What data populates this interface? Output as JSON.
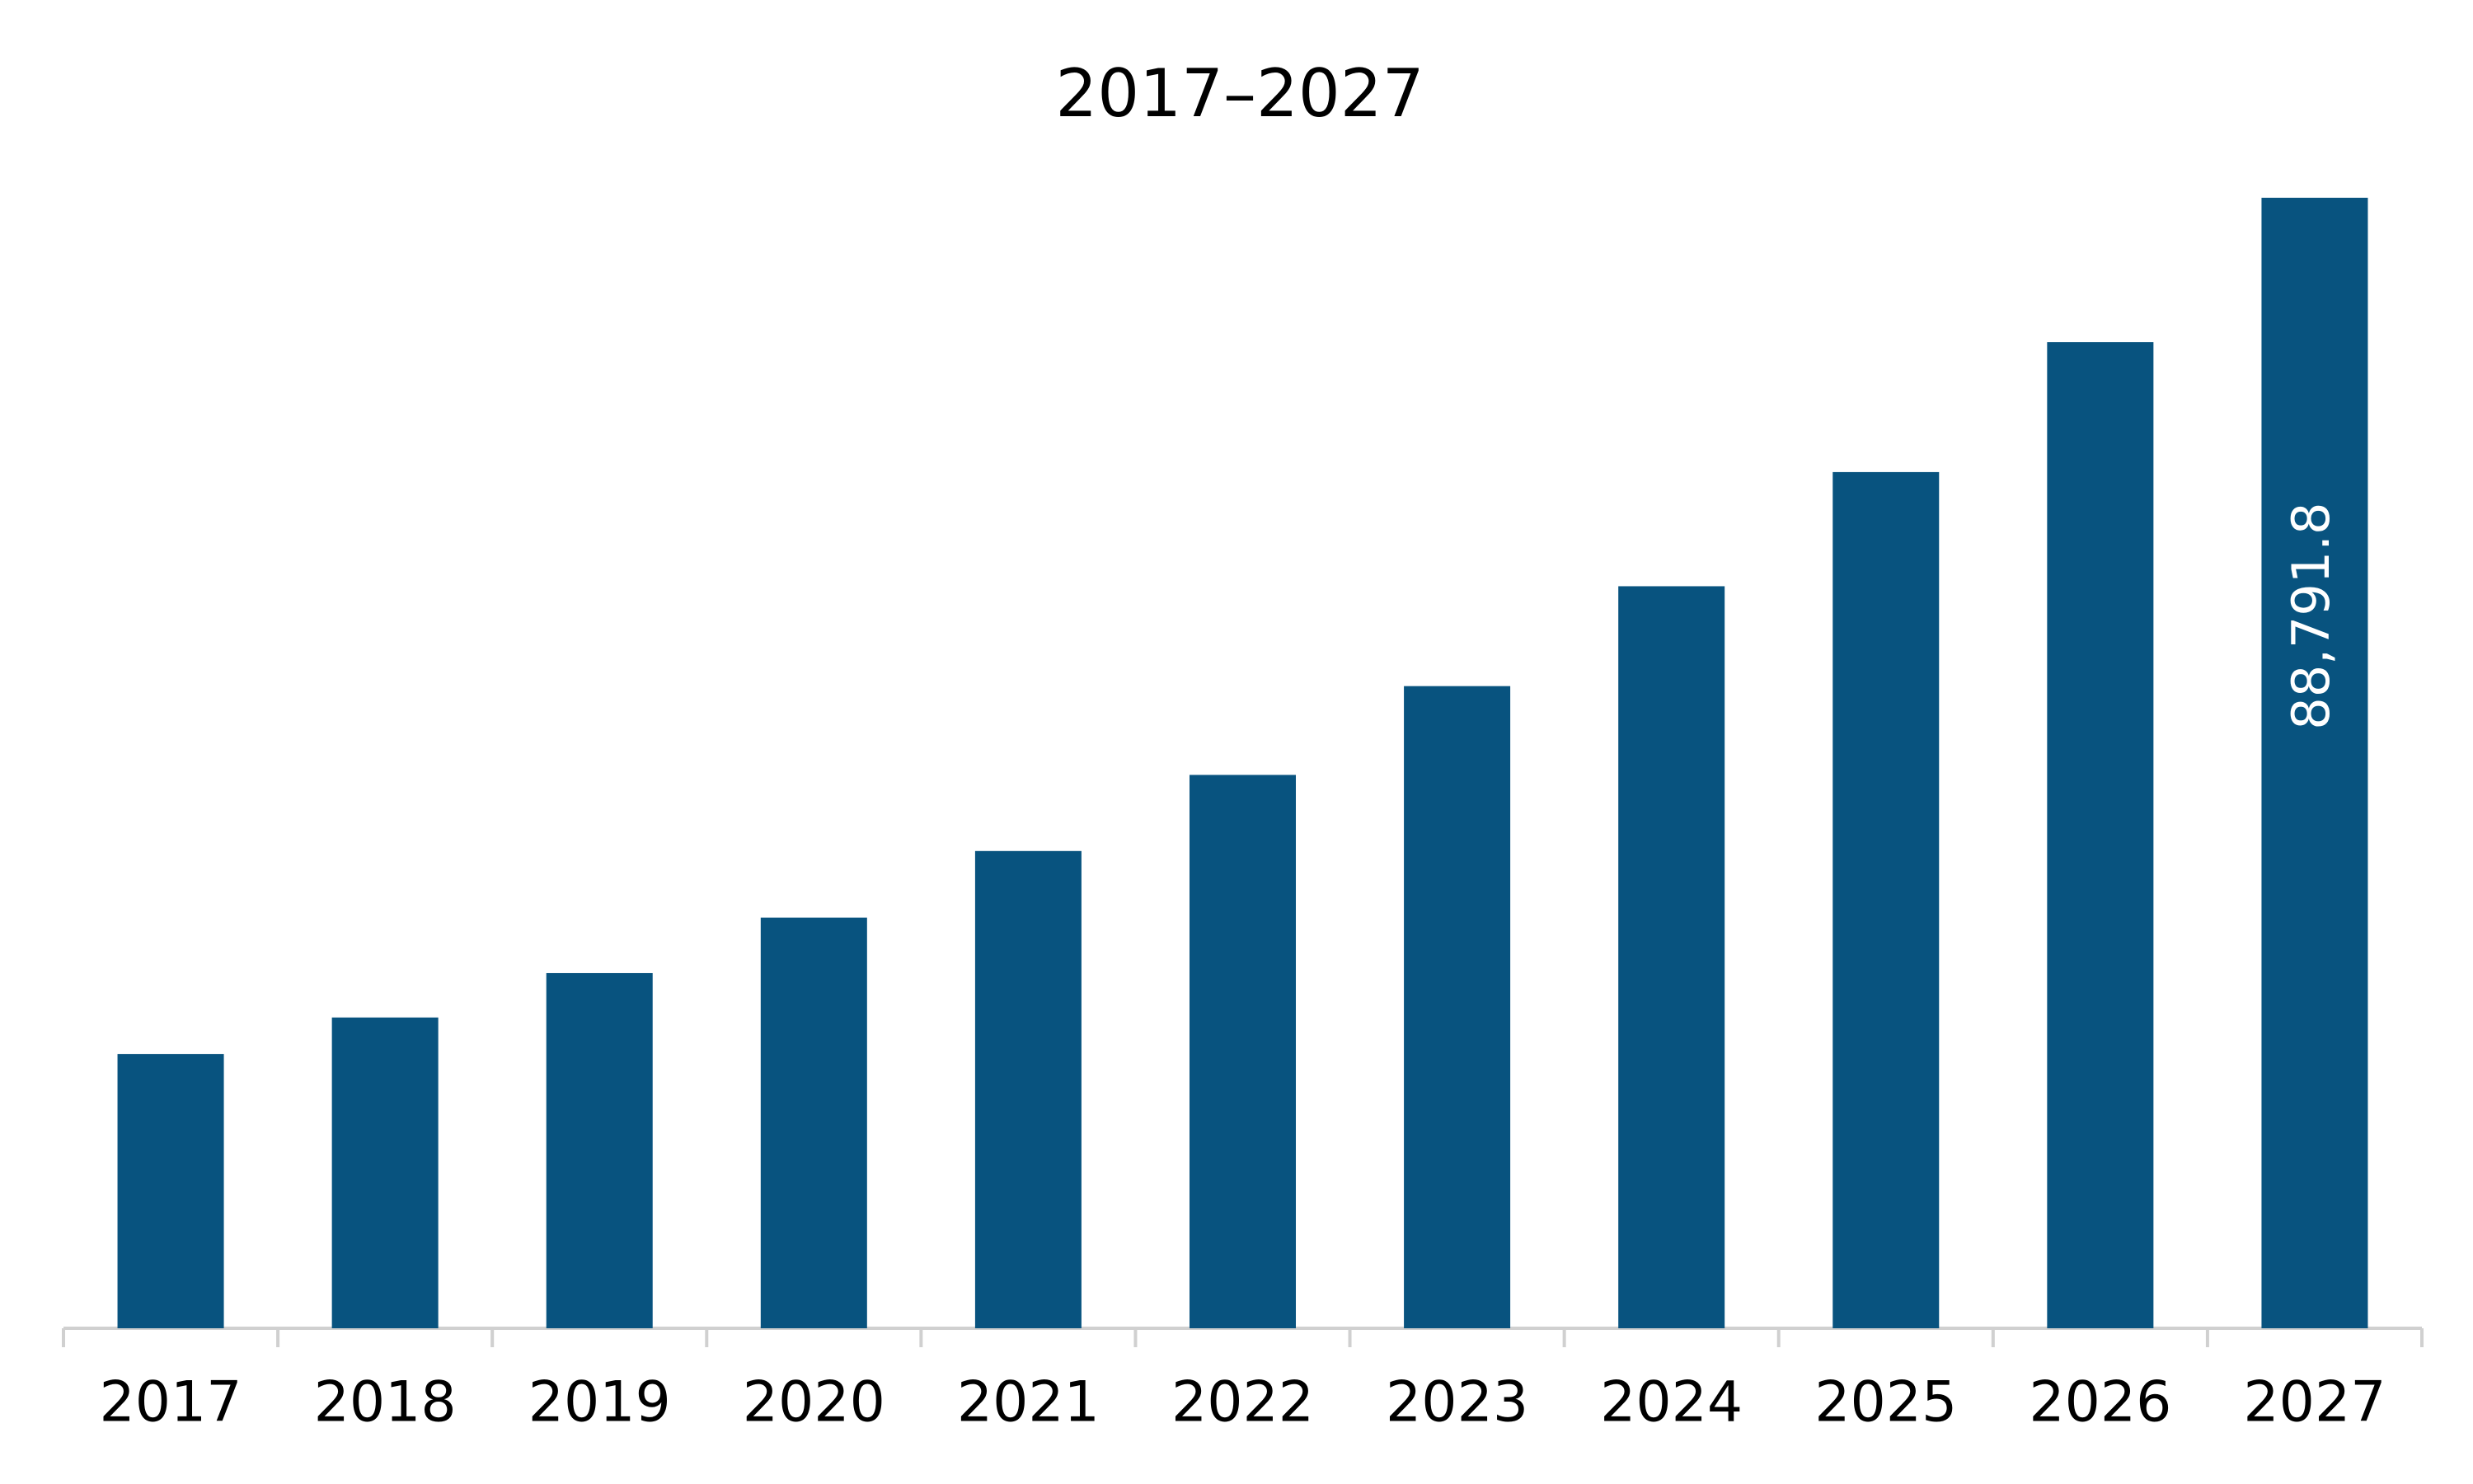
{
  "chart_data": {
    "type": "bar",
    "title": "2017–2027",
    "categories": [
      "2017",
      "2018",
      "2019",
      "2020",
      "2021",
      "2022",
      "2023",
      "2024",
      "2025",
      "2026",
      "2027"
    ],
    "values": [
      21544,
      24408,
      27895,
      32253,
      37484,
      43461,
      50435,
      58280,
      67246,
      77458,
      88791.8
    ],
    "value_labels": [
      null,
      null,
      null,
      null,
      null,
      null,
      null,
      null,
      null,
      null,
      "88,791.8"
    ],
    "color": "#08537f"
  }
}
